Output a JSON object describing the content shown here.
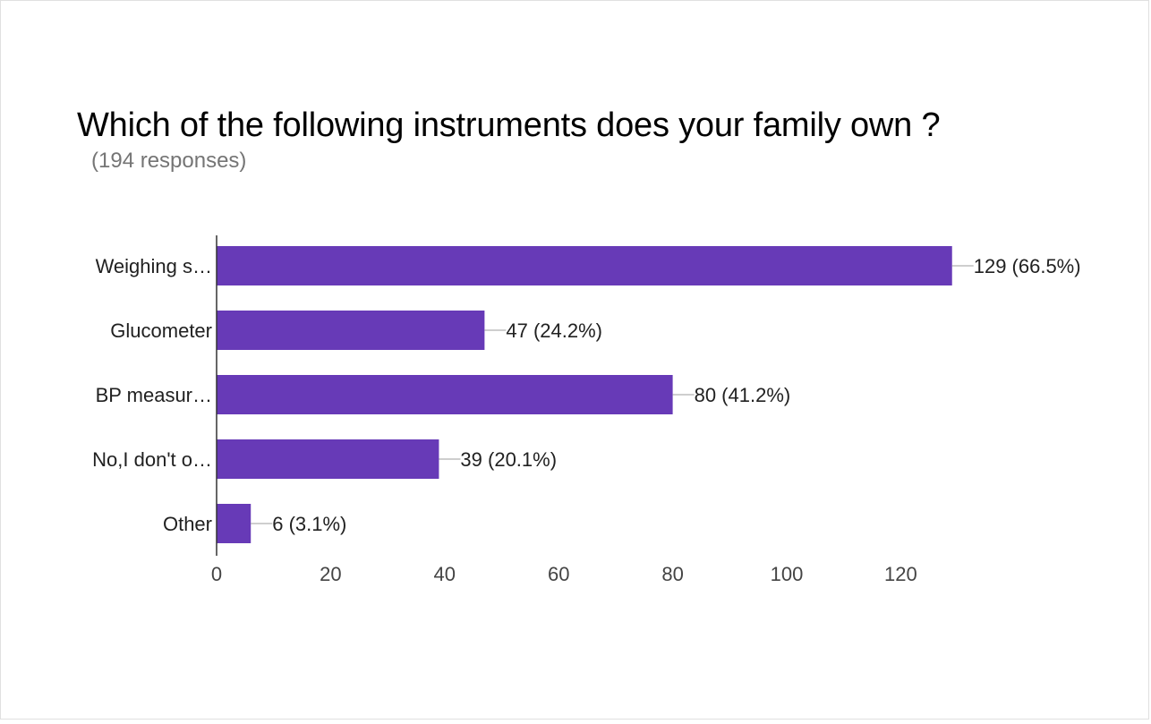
{
  "header": {
    "title": "Which of the following instruments does your family own ?",
    "subtitle": "(194 responses)"
  },
  "chart_data": {
    "type": "bar",
    "orientation": "horizontal",
    "categories": [
      "Weighing s…",
      "Glucometer",
      "BP measur…",
      "No,I don't o…",
      "Other"
    ],
    "values": [
      129,
      47,
      80,
      39,
      6
    ],
    "data_labels": [
      "129 (66.5%)",
      "47 (24.2%)",
      "80 (41.2%)",
      "39 (20.1%)",
      "6 (3.1%)"
    ],
    "xticks": [
      0,
      20,
      40,
      60,
      80,
      100,
      120
    ],
    "xlim": [
      0,
      129
    ],
    "bar_color": "#673ab7",
    "grid": false,
    "legend": "none"
  }
}
